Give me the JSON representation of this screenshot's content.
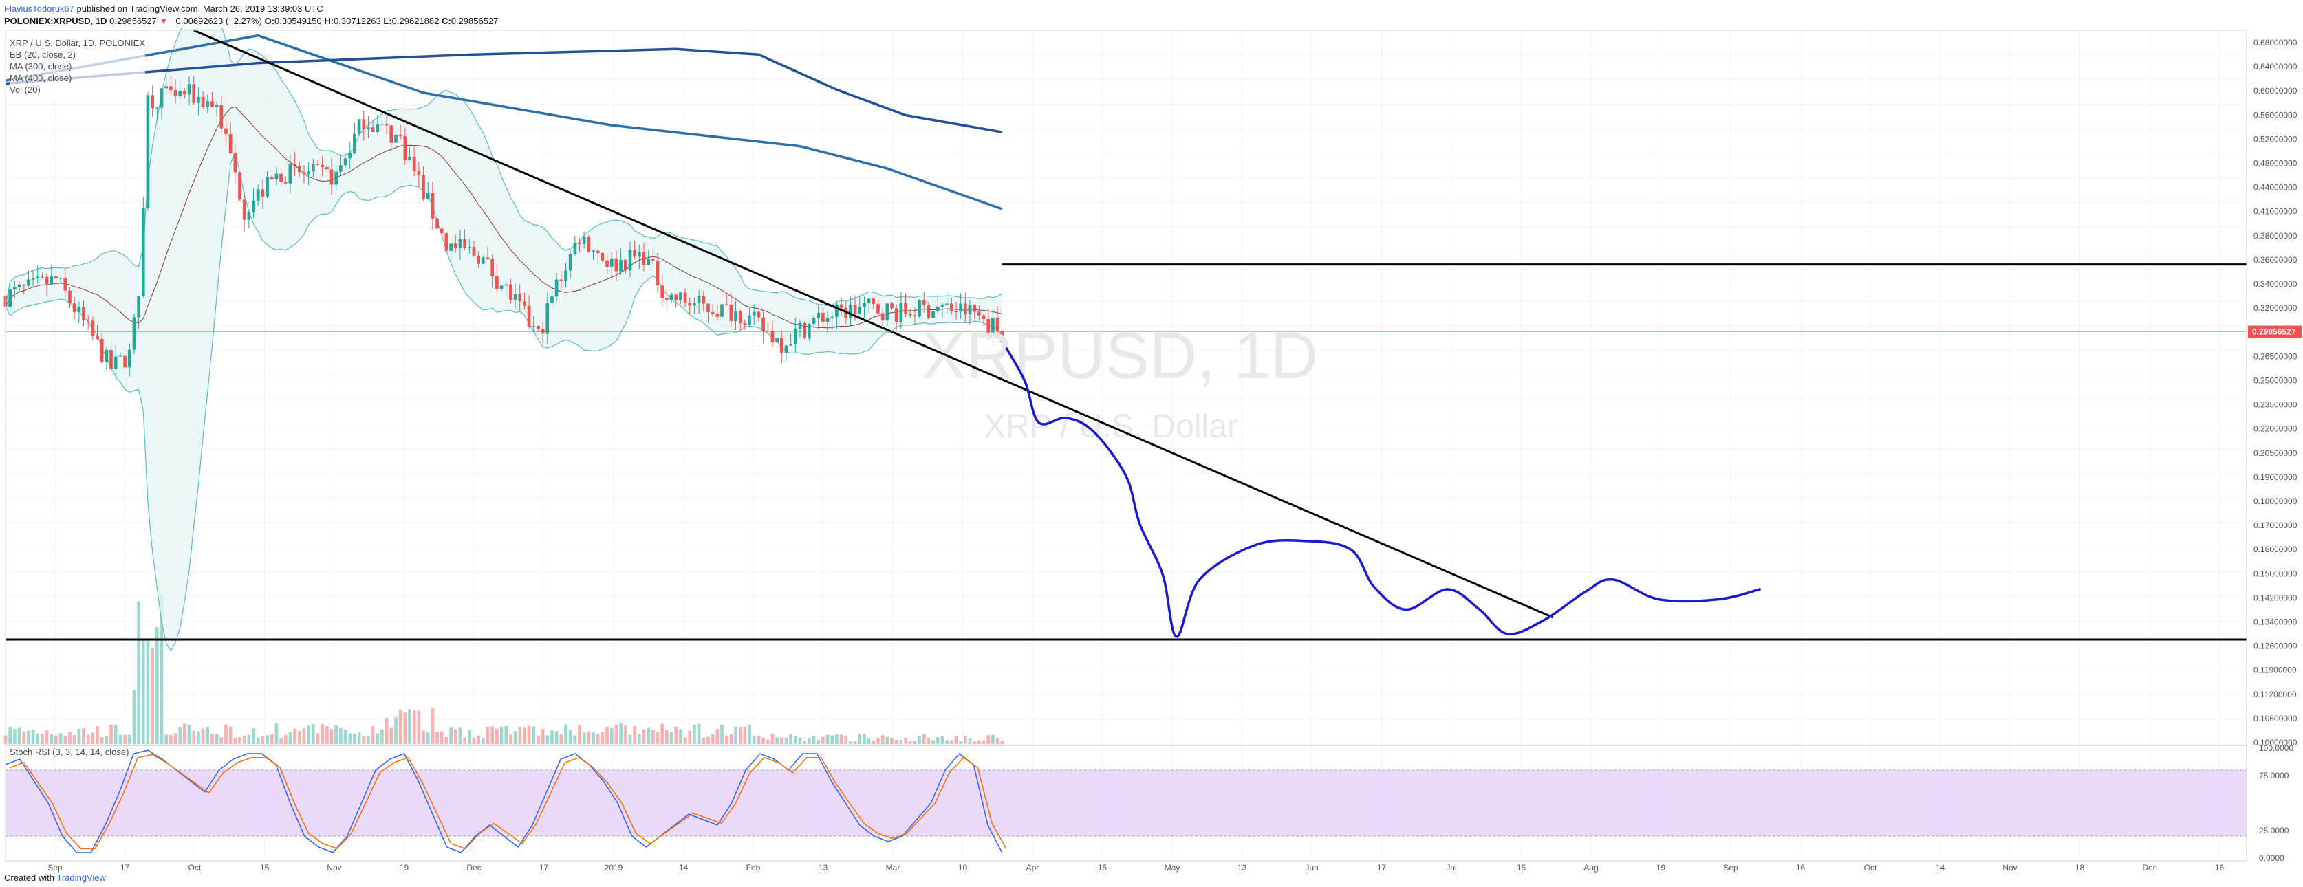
{
  "header": {
    "author": "FlaviusTodoruk67",
    "published_text": "published on TradingView.com, March 26, 2019 13:39:03 UTC",
    "symbol": "POLONIEX:XRPUSD, 1D",
    "last": "0.29856527",
    "change": "−0.00692623 (−2.27%)",
    "open_label": "O:",
    "open": "0.30549150",
    "high_label": "H:",
    "high": "0.30712263",
    "low_label": "L:",
    "low": "0.29621882",
    "close_label": "C:",
    "close": "0.29856527"
  },
  "legend": {
    "title": "XRP / U.S. Dollar, 1D, POLONIEX",
    "bb": "BB (20, close, 2)",
    "ma300": "MA (300, close)",
    "ma400": "MA (400, close)",
    "vol": "Vol (20)",
    "stoch": "Stoch RSI (3, 3, 14, 14, close)"
  },
  "watermark": {
    "symbol": "XRPUSD, 1D",
    "name": "XRP / U.S. Dollar"
  },
  "footer": {
    "created_with": "Created with",
    "brand": "TradingView"
  },
  "colors": {
    "up": "#26a69a",
    "down": "#ef5350",
    "bb_line": "#5bbcbd",
    "bb_fill": "#e6f4f4",
    "basis": "#8b3a2e",
    "ma300": "#2e6fa5",
    "ma400": "#244f99",
    "hand_drawn": "#1a1ad0",
    "stoch_k": "#2962ff",
    "stoch_d": "#ff6d00",
    "stoch_band": "#e1c9f9"
  },
  "price_axis_labels": [
    "0.68000000",
    "0.64000000",
    "0.60000000",
    "0.56000000",
    "0.52000000",
    "0.48000000",
    "0.44000000",
    "0.41000000",
    "0.38000000",
    "0.36000000",
    "0.34000000",
    "0.32000000",
    "0.28000000",
    "0.26500000",
    "0.25000000",
    "0.23500000",
    "0.22000000",
    "0.20500000",
    "0.19000000",
    "0.18000000",
    "0.17000000",
    "0.16000000",
    "0.15000000",
    "0.14200000",
    "0.13400000",
    "0.12600000",
    "0.11900000",
    "0.11200000",
    "0.10600000",
    "0.10000000"
  ],
  "current_price_label": "0.29856527",
  "stoch_axis_labels": [
    "100.0000",
    "75.0000",
    "25.0000",
    "0.0000"
  ],
  "time_axis_labels": [
    "Sep",
    "17",
    "Oct",
    "15",
    "Nov",
    "19",
    "Dec",
    "17",
    "2019",
    "14",
    "Feb",
    "13",
    "Mar",
    "10",
    "Apr",
    "15",
    "May",
    "13",
    "Jun",
    "17",
    "Jul",
    "15",
    "Aug",
    "19",
    "Sep",
    "16",
    "Oct",
    "14",
    "Nov",
    "18",
    "Dec",
    "16"
  ],
  "chart_data": {
    "type": "candlestick",
    "symbol": "XRPUSD",
    "exchange": "POLONIEX",
    "interval": "1D",
    "y_scale": "log",
    "ylim": [
      0.095,
      0.69
    ],
    "x_range": [
      "2018-08-21",
      "2019-12-22"
    ],
    "last_price": 0.29856527,
    "ohlc_last": {
      "open": 0.3054915,
      "high": 0.30712263,
      "low": 0.29621882,
      "close": 0.29856527
    },
    "price_path_approx": [
      {
        "x": "2018-08-21",
        "y": 0.33
      },
      {
        "x": "2018-09-01",
        "y": 0.345
      },
      {
        "x": "2018-09-08",
        "y": 0.3
      },
      {
        "x": "2018-09-13",
        "y": 0.27
      },
      {
        "x": "2018-09-17",
        "y": 0.28
      },
      {
        "x": "2018-09-19",
        "y": 0.33
      },
      {
        "x": "2018-09-21",
        "y": 0.57
      },
      {
        "x": "2018-09-29",
        "y": 0.58
      },
      {
        "x": "2018-10-06",
        "y": 0.56
      },
      {
        "x": "2018-10-12",
        "y": 0.42
      },
      {
        "x": "2018-10-20",
        "y": 0.465
      },
      {
        "x": "2018-11-01",
        "y": 0.46
      },
      {
        "x": "2018-11-07",
        "y": 0.54
      },
      {
        "x": "2018-11-15",
        "y": 0.51
      },
      {
        "x": "2018-11-20",
        "y": 0.44
      },
      {
        "x": "2018-11-25",
        "y": 0.38
      },
      {
        "x": "2018-12-02",
        "y": 0.37
      },
      {
        "x": "2018-12-09",
        "y": 0.33
      },
      {
        "x": "2018-12-15",
        "y": 0.295
      },
      {
        "x": "2018-12-19",
        "y": 0.34
      },
      {
        "x": "2018-12-24",
        "y": 0.39
      },
      {
        "x": "2018-12-31",
        "y": 0.36
      },
      {
        "x": "2019-01-07",
        "y": 0.37
      },
      {
        "x": "2019-01-12",
        "y": 0.33
      },
      {
        "x": "2019-01-20",
        "y": 0.32
      },
      {
        "x": "2019-01-28",
        "y": 0.315
      },
      {
        "x": "2019-02-06",
        "y": 0.29
      },
      {
        "x": "2019-02-14",
        "y": 0.31
      },
      {
        "x": "2019-02-24",
        "y": 0.32
      },
      {
        "x": "2019-03-04",
        "y": 0.315
      },
      {
        "x": "2019-03-12",
        "y": 0.32
      },
      {
        "x": "2019-03-20",
        "y": 0.315
      },
      {
        "x": "2019-03-26",
        "y": 0.29856527
      }
    ],
    "indicators": {
      "bollinger_bands": "BB (20, close, 2)",
      "ma300": "MA (300, close)",
      "ma400": "MA (400, close)",
      "volume": "Vol (20)",
      "stoch_rsi": "Stoch RSI (3, 3, 14, 14, close)"
    },
    "ma300_path": [
      {
        "x": "2018-08-21",
        "y": 0.6
      },
      {
        "x": "2018-10-15",
        "y": 0.68
      },
      {
        "x": "2018-11-20",
        "y": 0.58
      },
      {
        "x": "2018-12-31",
        "y": 0.53
      },
      {
        "x": "2019-02-10",
        "y": 0.5
      },
      {
        "x": "2019-03-01",
        "y": 0.47
      },
      {
        "x": "2019-03-26",
        "y": 0.42
      }
    ],
    "ma400_path": [
      {
        "x": "2018-08-21",
        "y": 0.595
      },
      {
        "x": "2018-10-15",
        "y": 0.63
      },
      {
        "x": "2018-12-01",
        "y": 0.645
      },
      {
        "x": "2019-01-14",
        "y": 0.655
      },
      {
        "x": "2019-02-01",
        "y": 0.645
      },
      {
        "x": "2019-02-18",
        "y": 0.585
      },
      {
        "x": "2019-03-05",
        "y": 0.545
      },
      {
        "x": "2019-03-26",
        "y": 0.52
      }
    ],
    "drawings": {
      "downtrend_line": [
        {
          "x": "2018-10-01",
          "y": 0.69
        },
        {
          "x": "2019-07-24",
          "y": 0.135
        }
      ],
      "resistance_level": 0.36,
      "support_level": 0.127,
      "forecast_path": [
        {
          "x": "2019-03-27",
          "y": 0.285
        },
        {
          "x": "2019-03-31",
          "y": 0.26
        },
        {
          "x": "2019-04-03",
          "y": 0.232
        },
        {
          "x": "2019-04-09",
          "y": 0.235
        },
        {
          "x": "2019-04-15",
          "y": 0.226
        },
        {
          "x": "2019-04-22",
          "y": 0.2
        },
        {
          "x": "2019-04-25",
          "y": 0.175
        },
        {
          "x": "2019-04-30",
          "y": 0.152
        },
        {
          "x": "2019-05-03",
          "y": 0.128
        },
        {
          "x": "2019-05-08",
          "y": 0.15
        },
        {
          "x": "2019-05-20",
          "y": 0.165
        },
        {
          "x": "2019-05-31",
          "y": 0.167
        },
        {
          "x": "2019-06-10",
          "y": 0.163
        },
        {
          "x": "2019-06-15",
          "y": 0.147
        },
        {
          "x": "2019-06-22",
          "y": 0.138
        },
        {
          "x": "2019-07-01",
          "y": 0.146
        },
        {
          "x": "2019-07-08",
          "y": 0.138
        },
        {
          "x": "2019-07-14",
          "y": 0.129
        },
        {
          "x": "2019-07-22",
          "y": 0.134
        },
        {
          "x": "2019-07-31",
          "y": 0.145
        },
        {
          "x": "2019-08-06",
          "y": 0.15
        },
        {
          "x": "2019-08-16",
          "y": 0.142
        },
        {
          "x": "2019-08-29",
          "y": 0.142
        },
        {
          "x": "2019-09-07",
          "y": 0.146
        }
      ]
    },
    "stoch_rsi": {
      "ylim": [
        0,
        100
      ],
      "bands": [
        20,
        80
      ],
      "k_path_approx": [
        85,
        90,
        70,
        50,
        20,
        5,
        5,
        30,
        60,
        95,
        98,
        90,
        80,
        70,
        60,
        80,
        90,
        95,
        95,
        85,
        50,
        20,
        10,
        5,
        20,
        50,
        80,
        90,
        95,
        70,
        40,
        10,
        5,
        20,
        30,
        20,
        10,
        30,
        60,
        90,
        95,
        85,
        70,
        50,
        20,
        10,
        20,
        30,
        40,
        35,
        30,
        50,
        80,
        95,
        90,
        80,
        95,
        95,
        70,
        50,
        30,
        20,
        15,
        20,
        35,
        50,
        80,
        95,
        85,
        30,
        5
      ]
    }
  }
}
